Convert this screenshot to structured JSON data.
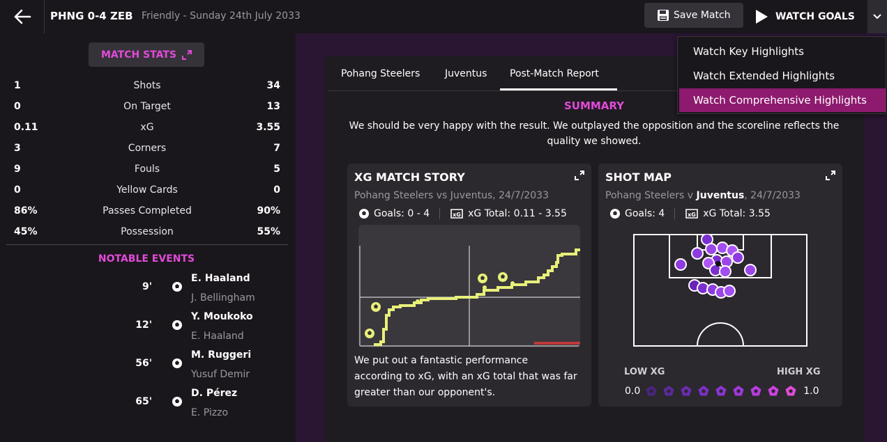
{
  "header": {
    "title": "PHNG 0-4 ZEB",
    "subtitle": "Friendly - Sunday 24th July 2033",
    "save_label": "Save Match",
    "watch_goals_label": "WATCH GOALS"
  },
  "dropdown": {
    "items": [
      {
        "label": "Watch Key Highlights",
        "active": false
      },
      {
        "label": "Watch Extended Highlights",
        "active": false
      },
      {
        "label": "Watch Comprehensive Highlights",
        "active": true
      }
    ]
  },
  "stats_panel": {
    "button_label": "MATCH STATS",
    "rows": [
      {
        "home": "1",
        "label": "Shots",
        "away": "34"
      },
      {
        "home": "0",
        "label": "On Target",
        "away": "13"
      },
      {
        "home": "0.11",
        "label": "xG",
        "away": "3.55"
      },
      {
        "home": "3",
        "label": "Corners",
        "away": "7"
      },
      {
        "home": "9",
        "label": "Fouls",
        "away": "5"
      },
      {
        "home": "0",
        "label": "Yellow Cards",
        "away": "0"
      },
      {
        "home": "86%",
        "label": "Passes Completed",
        "away": "90%"
      },
      {
        "home": "45%",
        "label": "Possession",
        "away": "55%"
      }
    ],
    "notable_title": "NOTABLE EVENTS",
    "events": [
      {
        "minute": "9'",
        "scorer": "E. Haaland",
        "assist": "J. Bellingham"
      },
      {
        "minute": "12'",
        "scorer": "Y. Moukoko",
        "assist": "E. Haaland"
      },
      {
        "minute": "56'",
        "scorer": "M. Ruggeri",
        "assist": "Yusuf Demir"
      },
      {
        "minute": "65'",
        "scorer": "D. Pérez",
        "assist": "E. Pizzo"
      }
    ]
  },
  "report": {
    "tabs": [
      "Pohang Steelers",
      "Juventus",
      "Post-Match Report"
    ],
    "summary_title": "SUMMARY",
    "summary_text": "We should be very happy with the result. We outplayed the opposition and the scoreline reflects the quality we showed.",
    "xg_card": {
      "title": "XG MATCH STORY",
      "subtitle": "Pohang Steelers vs Juventus, 24/7/2033",
      "goals": "Goals: 0 - 4",
      "xg_total": "xG Total: 0.11 - 3.55",
      "text": "We put out a fantastic performance according to xG, with an xG total that was far greater than our opponent's."
    },
    "shot_card": {
      "title": "SHOT MAP",
      "subtitle_prefix": "Pohang Steelers v ",
      "subtitle_bold": "Juventus",
      "subtitle_suffix": ", 24/7/2033",
      "goals": "Goals: 4",
      "xg_total": "xG Total: 3.55",
      "low_label": "LOW XG",
      "high_label": "HIGH XG",
      "scale_min": "0.0",
      "scale_max": "1.0"
    }
  },
  "colors": {
    "accent": "#e14bd8",
    "dropdown_active": "#8d1a6e",
    "xg_line": "#e8f07a",
    "shot_purple": "#7b2fd0"
  }
}
